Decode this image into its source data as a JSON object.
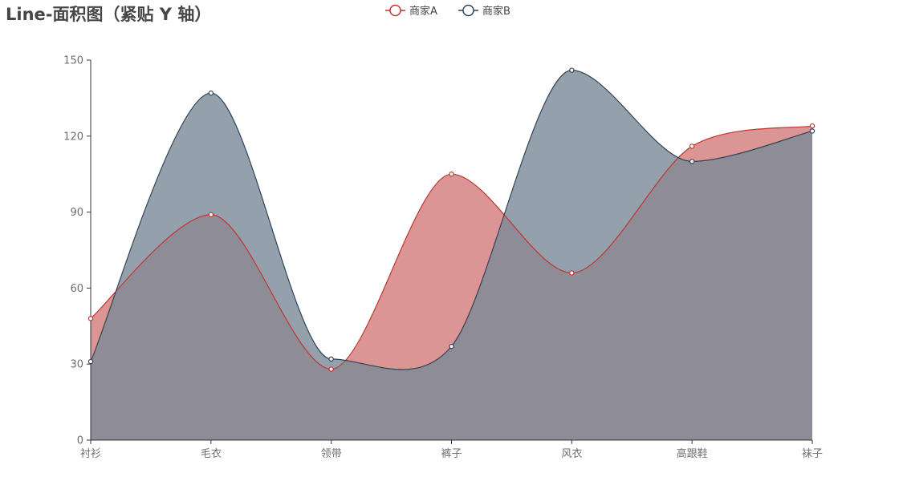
{
  "chart_data": {
    "type": "area",
    "title": "Line-面积图（紧贴 Y 轴）",
    "categories": [
      "衬衫",
      "毛衣",
      "领带",
      "裤子",
      "风衣",
      "高跟鞋",
      "袜子"
    ],
    "series": [
      {
        "name": "商家A",
        "values": [
          48,
          89,
          28,
          105,
          66,
          116,
          124
        ],
        "color": "#c23531",
        "fill": "#d27a79",
        "opacity": 0.8
      },
      {
        "name": "商家B",
        "values": [
          31,
          137,
          32,
          37,
          146,
          110,
          122
        ],
        "color": "#2f4554",
        "fill": "#798a97",
        "opacity": 0.8
      }
    ],
    "ylim": [
      0,
      150
    ],
    "yticks": [
      0,
      30,
      60,
      90,
      120,
      150
    ],
    "smooth": true,
    "boundary_gap": false,
    "legend_position": "top-center",
    "grid": false
  }
}
